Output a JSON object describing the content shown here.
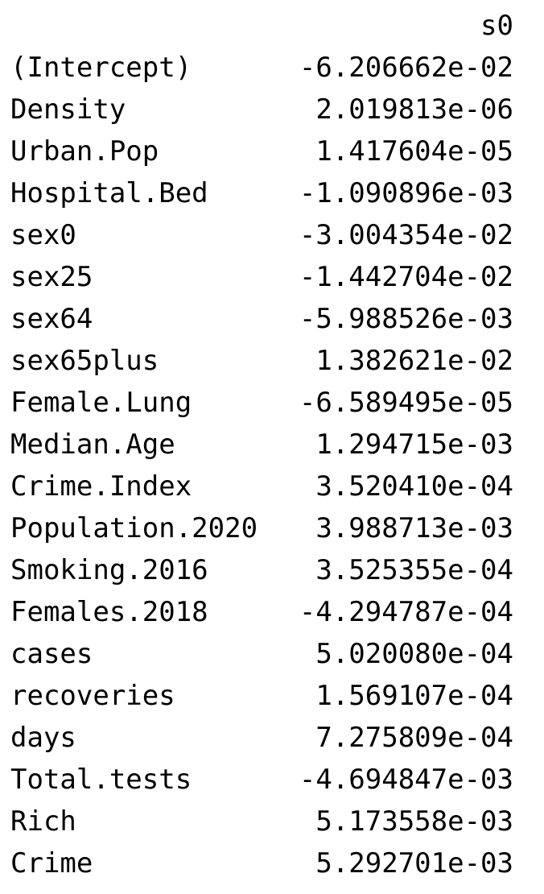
{
  "output": {
    "column_header": "s0",
    "rows": [
      {
        "name": "(Intercept)",
        "value": "-6.206662e-02"
      },
      {
        "name": "Density",
        "value": "2.019813e-06"
      },
      {
        "name": "Urban.Pop",
        "value": "1.417604e-05"
      },
      {
        "name": "Hospital.Bed",
        "value": "-1.090896e-03"
      },
      {
        "name": "sex0",
        "value": "-3.004354e-02"
      },
      {
        "name": "sex25",
        "value": "-1.442704e-02"
      },
      {
        "name": "sex64",
        "value": "-5.988526e-03"
      },
      {
        "name": "sex65plus",
        "value": "1.382621e-02"
      },
      {
        "name": "Female.Lung",
        "value": "-6.589495e-05"
      },
      {
        "name": "Median.Age",
        "value": "1.294715e-03"
      },
      {
        "name": "Crime.Index",
        "value": "3.520410e-04"
      },
      {
        "name": "Population.2020",
        "value": "3.988713e-03"
      },
      {
        "name": "Smoking.2016",
        "value": "3.525355e-04"
      },
      {
        "name": "Females.2018",
        "value": "-4.294787e-04"
      },
      {
        "name": "cases",
        "value": "5.020080e-04"
      },
      {
        "name": "recoveries",
        "value": "1.569107e-04"
      },
      {
        "name": "days",
        "value": "7.275809e-04"
      },
      {
        "name": "Total.tests",
        "value": "-4.694847e-03"
      },
      {
        "name": "Rich",
        "value": "5.173558e-03"
      },
      {
        "name": "Crime",
        "value": "5.292701e-03"
      }
    ]
  }
}
